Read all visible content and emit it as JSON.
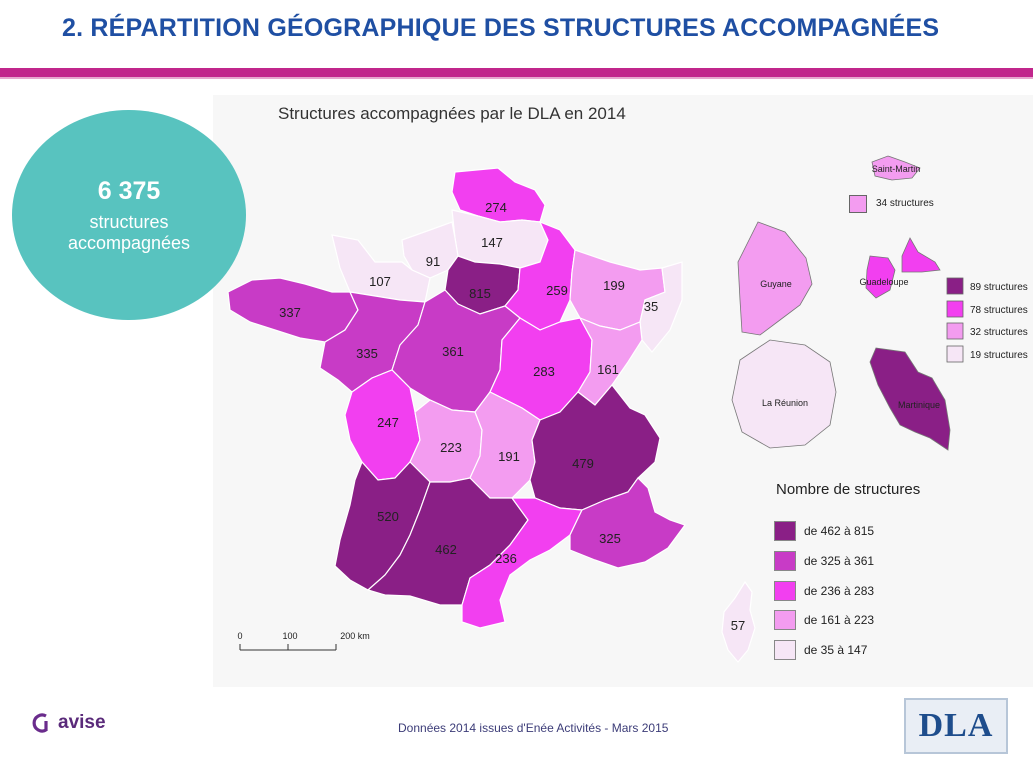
{
  "header": {
    "title": "2. RÉPARTITION GÉOGRAPHIQUE DES STRUCTURES ACCOMPAGNÉES"
  },
  "kpi": {
    "value": "6 375",
    "label_line1": "structures",
    "label_line2": "accompagnées"
  },
  "map": {
    "title": "Structures accompagnées par le DLA en 2014",
    "regions": [
      {
        "value": "274",
        "class": "de 236 à 283"
      },
      {
        "value": "147",
        "class": "de 35 à 147"
      },
      {
        "value": "91",
        "class": "de 35 à 147"
      },
      {
        "value": "107",
        "class": "de 35 à 147"
      },
      {
        "value": "815",
        "class": "de 462 à 815"
      },
      {
        "value": "259",
        "class": "de 236 à 283"
      },
      {
        "value": "199",
        "class": "de 161 à 223"
      },
      {
        "value": "35",
        "class": "de 35 à 147"
      },
      {
        "value": "337",
        "class": "de 325 à 361"
      },
      {
        "value": "335",
        "class": "de 325 à 361"
      },
      {
        "value": "361",
        "class": "de 325 à 361"
      },
      {
        "value": "283",
        "class": "de 236 à 283"
      },
      {
        "value": "161",
        "class": "de 161 à 223"
      },
      {
        "value": "247",
        "class": "de 236 à 283"
      },
      {
        "value": "223",
        "class": "de 161 à 223"
      },
      {
        "value": "191",
        "class": "de 161 à 223"
      },
      {
        "value": "479",
        "class": "de 462 à 815"
      },
      {
        "value": "520",
        "class": "de 462 à 815"
      },
      {
        "value": "462",
        "class": "de 462 à 815"
      },
      {
        "value": "236",
        "class": "de 236 à 283"
      },
      {
        "value": "325",
        "class": "de 325 à 361"
      },
      {
        "value": "57",
        "class": "de 35 à 147"
      }
    ],
    "overseas": {
      "saint_martin": {
        "name": "Saint-Martin",
        "legend": "34 structures",
        "color": "#f39cf0"
      },
      "guyane": {
        "name": "Guyane"
      },
      "guadeloupe": {
        "name": "Guadeloupe"
      },
      "la_reunion": {
        "name": "La Réunion"
      },
      "martinique": {
        "name": "Martinique"
      },
      "legend": [
        {
          "label": "89 structures",
          "color": "#8a1f86"
        },
        {
          "label": "78 structures",
          "color": "#f23ff0"
        },
        {
          "label": "32 structures",
          "color": "#f39cf0"
        },
        {
          "label": "19 structures",
          "color": "#f6e6f6"
        }
      ]
    },
    "scale": {
      "labels": [
        "0",
        "100",
        "200 km"
      ]
    },
    "legend": {
      "title": "Nombre de structures",
      "classes": [
        {
          "label": "de 462 à 815",
          "color": "#8a1f86"
        },
        {
          "label": "de 325 à 361",
          "color": "#c83bc6"
        },
        {
          "label": "de 236 à 283",
          "color": "#f23ff0"
        },
        {
          "label": "de 161 à 223",
          "color": "#f39cf0"
        },
        {
          "label": "de 35 à 147",
          "color": "#f6e6f6"
        }
      ]
    }
  },
  "footer": {
    "brand": "avise",
    "source": "Données 2014 issues d'Enée Activités - Mars 2015",
    "dla_logo": "DLA"
  }
}
